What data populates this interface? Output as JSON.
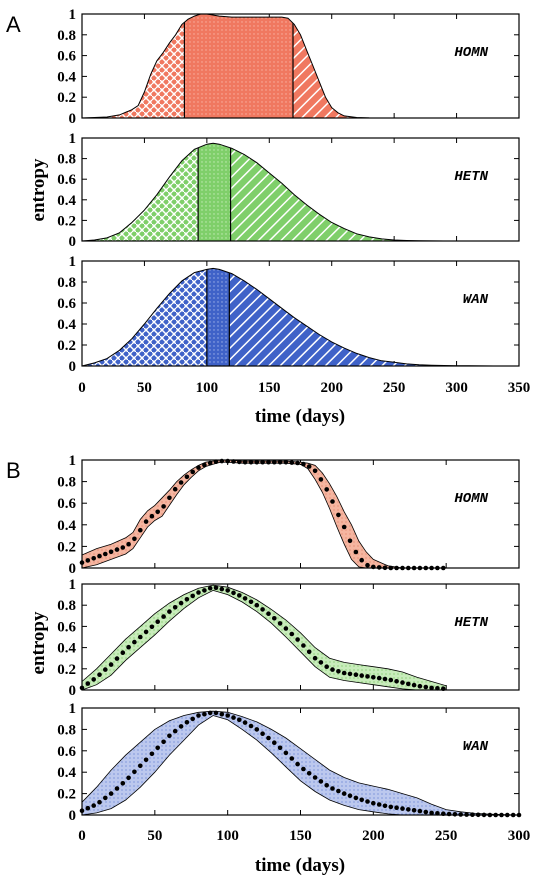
{
  "chart_data": [
    {
      "panel": "A",
      "type": "area",
      "ylabel": "entropy",
      "xlabel": "time (days)",
      "xlim": [
        0,
        350
      ],
      "ylim": [
        0,
        1
      ],
      "xticks": [
        0,
        50,
        100,
        150,
        200,
        250,
        300,
        350
      ],
      "yticks": [
        0,
        0.2,
        0.4,
        0.6,
        0.8,
        1
      ],
      "subplots": [
        {
          "label": "HOMN",
          "color": "#f07860",
          "x": [
            0,
            10,
            20,
            30,
            40,
            45,
            50,
            55,
            60,
            65,
            70,
            75,
            80,
            85,
            90,
            95,
            100,
            110,
            120,
            130,
            140,
            150,
            160,
            165,
            170,
            175,
            180,
            185,
            190,
            195,
            200,
            205,
            210,
            220,
            230,
            240
          ],
          "y": [
            0,
            0.005,
            0.01,
            0.03,
            0.08,
            0.12,
            0.25,
            0.42,
            0.55,
            0.63,
            0.72,
            0.8,
            0.9,
            0.95,
            0.98,
            1.0,
            1.0,
            0.98,
            0.97,
            0.97,
            0.97,
            0.97,
            0.97,
            0.96,
            0.9,
            0.8,
            0.65,
            0.5,
            0.35,
            0.2,
            0.1,
            0.05,
            0.02,
            0.005,
            0.001,
            0
          ],
          "region_boundaries": [
            82,
            169
          ]
        },
        {
          "label": "HETN",
          "color": "#7fcf6a",
          "x": [
            0,
            10,
            20,
            30,
            40,
            50,
            60,
            70,
            80,
            90,
            100,
            105,
            110,
            120,
            130,
            140,
            150,
            160,
            170,
            180,
            190,
            200,
            210,
            220,
            230,
            240,
            250,
            260,
            270,
            280,
            290,
            300
          ],
          "y": [
            0,
            0.01,
            0.03,
            0.08,
            0.18,
            0.3,
            0.45,
            0.62,
            0.78,
            0.89,
            0.94,
            0.95,
            0.94,
            0.9,
            0.84,
            0.76,
            0.66,
            0.56,
            0.45,
            0.35,
            0.26,
            0.18,
            0.12,
            0.07,
            0.04,
            0.02,
            0.01,
            0.005,
            0.002,
            0.001,
            0,
            0
          ],
          "region_boundaries": [
            93,
            119
          ]
        },
        {
          "label": "WAN",
          "color": "#3f62c8",
          "x": [
            0,
            10,
            20,
            30,
            40,
            50,
            60,
            70,
            80,
            90,
            100,
            105,
            110,
            120,
            130,
            140,
            150,
            160,
            170,
            180,
            190,
            200,
            210,
            220,
            230,
            240,
            250,
            260,
            270,
            280,
            290,
            300,
            310,
            320,
            330
          ],
          "y": [
            0,
            0.03,
            0.07,
            0.15,
            0.26,
            0.4,
            0.55,
            0.69,
            0.81,
            0.89,
            0.92,
            0.93,
            0.92,
            0.88,
            0.81,
            0.73,
            0.64,
            0.55,
            0.46,
            0.38,
            0.3,
            0.23,
            0.17,
            0.12,
            0.08,
            0.05,
            0.035,
            0.02,
            0.012,
            0.008,
            0.005,
            0.003,
            0.002,
            0.001,
            0
          ],
          "region_boundaries": [
            100,
            118
          ]
        }
      ]
    },
    {
      "panel": "B",
      "type": "line",
      "ylabel": "entropy",
      "xlabel": "time (days)",
      "xlim": [
        0,
        300
      ],
      "ylim": [
        0,
        1
      ],
      "xticks": [
        0,
        50,
        100,
        150,
        200,
        250,
        300
      ],
      "yticks": [
        0,
        0.2,
        0.4,
        0.6,
        0.8,
        1
      ],
      "subplots": [
        {
          "label": "HOMN",
          "color": "#f5b5a0",
          "x": [
            0,
            10,
            20,
            30,
            35,
            40,
            45,
            50,
            55,
            60,
            65,
            70,
            75,
            80,
            85,
            90,
            95,
            100,
            110,
            120,
            130,
            140,
            150,
            155,
            160,
            165,
            170,
            175,
            180,
            185,
            190,
            195,
            200,
            210,
            220,
            230,
            240,
            250
          ],
          "mean": [
            0.05,
            0.1,
            0.15,
            0.2,
            0.25,
            0.35,
            0.45,
            0.5,
            0.55,
            0.65,
            0.75,
            0.82,
            0.88,
            0.93,
            0.96,
            0.98,
            0.99,
            0.99,
            0.98,
            0.98,
            0.98,
            0.98,
            0.97,
            0.95,
            0.9,
            0.8,
            0.68,
            0.52,
            0.38,
            0.22,
            0.1,
            0.03,
            0.01,
            0,
            0,
            0,
            0,
            0
          ],
          "upper": [
            0.12,
            0.18,
            0.22,
            0.28,
            0.33,
            0.45,
            0.53,
            0.58,
            0.65,
            0.72,
            0.8,
            0.86,
            0.91,
            0.95,
            0.98,
            0.99,
            1.0,
            1.0,
            0.99,
            0.99,
            0.99,
            0.99,
            0.98,
            0.97,
            0.95,
            0.88,
            0.78,
            0.66,
            0.52,
            0.4,
            0.25,
            0.15,
            0.08,
            0.02,
            0,
            0,
            0,
            0
          ],
          "lower": [
            0,
            0.03,
            0.08,
            0.13,
            0.18,
            0.28,
            0.38,
            0.44,
            0.48,
            0.58,
            0.68,
            0.77,
            0.84,
            0.9,
            0.94,
            0.96,
            0.98,
            0.98,
            0.97,
            0.97,
            0.97,
            0.97,
            0.96,
            0.92,
            0.82,
            0.7,
            0.55,
            0.38,
            0.22,
            0.08,
            0.01,
            0,
            0,
            0,
            0,
            0,
            0,
            0
          ]
        },
        {
          "label": "HETN",
          "color": "#c8ecbb",
          "x": [
            0,
            10,
            20,
            30,
            40,
            50,
            60,
            70,
            80,
            90,
            100,
            110,
            120,
            130,
            140,
            150,
            160,
            170,
            180,
            190,
            200,
            210,
            220,
            230,
            240,
            250
          ],
          "mean": [
            0.02,
            0.12,
            0.24,
            0.38,
            0.5,
            0.62,
            0.74,
            0.84,
            0.92,
            0.97,
            0.94,
            0.88,
            0.8,
            0.7,
            0.58,
            0.45,
            0.3,
            0.2,
            0.16,
            0.14,
            0.12,
            0.1,
            0.07,
            0.04,
            0.02,
            0.01
          ],
          "upper": [
            0.08,
            0.2,
            0.34,
            0.48,
            0.6,
            0.72,
            0.82,
            0.9,
            0.96,
            0.99,
            0.97,
            0.92,
            0.85,
            0.76,
            0.66,
            0.54,
            0.4,
            0.3,
            0.26,
            0.24,
            0.22,
            0.2,
            0.17,
            0.12,
            0.08,
            0.04
          ],
          "lower": [
            0,
            0.05,
            0.14,
            0.28,
            0.4,
            0.52,
            0.65,
            0.77,
            0.87,
            0.94,
            0.9,
            0.83,
            0.74,
            0.63,
            0.5,
            0.36,
            0.22,
            0.12,
            0.09,
            0.07,
            0.05,
            0.03,
            0.01,
            0,
            0,
            0
          ]
        },
        {
          "label": "WAN",
          "color": "#bcc8ee",
          "x": [
            0,
            10,
            20,
            30,
            40,
            50,
            60,
            70,
            80,
            90,
            100,
            110,
            120,
            130,
            140,
            150,
            160,
            170,
            180,
            190,
            200,
            210,
            220,
            230,
            240,
            250,
            260,
            270,
            280,
            290,
            300
          ],
          "mean": [
            0.04,
            0.1,
            0.2,
            0.32,
            0.46,
            0.6,
            0.74,
            0.85,
            0.93,
            0.96,
            0.93,
            0.88,
            0.8,
            0.7,
            0.58,
            0.45,
            0.35,
            0.26,
            0.2,
            0.15,
            0.11,
            0.08,
            0.06,
            0.04,
            0.02,
            0.01,
            0.005,
            0.002,
            0,
            0,
            0
          ],
          "upper": [
            0.12,
            0.26,
            0.42,
            0.56,
            0.68,
            0.8,
            0.88,
            0.93,
            0.96,
            0.97,
            0.96,
            0.92,
            0.87,
            0.8,
            0.72,
            0.62,
            0.52,
            0.42,
            0.35,
            0.3,
            0.27,
            0.24,
            0.2,
            0.16,
            0.1,
            0.05,
            0.03,
            0.015,
            0.008,
            0.003,
            0
          ],
          "lower": [
            0,
            0.02,
            0.06,
            0.14,
            0.26,
            0.4,
            0.56,
            0.7,
            0.84,
            0.93,
            0.89,
            0.8,
            0.7,
            0.58,
            0.45,
            0.32,
            0.22,
            0.14,
            0.09,
            0.05,
            0.03,
            0.01,
            0,
            0,
            0,
            0,
            0,
            0,
            0,
            0,
            0
          ]
        }
      ]
    }
  ],
  "panel_labels": [
    "A",
    "B"
  ],
  "texts": {
    "ylabel": "entropy",
    "xlabel": "time (days)"
  }
}
